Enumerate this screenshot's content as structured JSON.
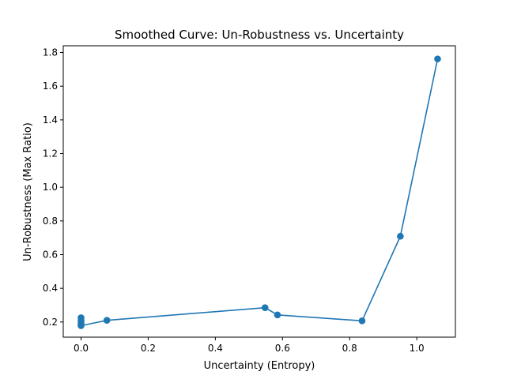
{
  "chart_data": {
    "type": "line",
    "title": "Smoothed Curve: Un-Robustness vs. Uncertainty",
    "xlabel": "Uncertainty (Entropy)",
    "ylabel": "Un-Robustness (Max Ratio)",
    "xlim": [
      -0.053,
      1.115
    ],
    "ylim": [
      0.11,
      1.84
    ],
    "xticks": [
      0.0,
      0.2,
      0.4,
      0.6,
      0.8,
      1.0
    ],
    "xtick_labels": [
      "0.0",
      "0.2",
      "0.4",
      "0.6",
      "0.8",
      "1.0"
    ],
    "yticks": [
      0.2,
      0.4,
      0.6,
      0.8,
      1.0,
      1.2,
      1.4,
      1.6,
      1.8
    ],
    "ytick_labels": [
      "0.2",
      "0.4",
      "0.6",
      "0.8",
      "1.0",
      "1.2",
      "1.4",
      "1.6",
      "1.8"
    ],
    "grid": false,
    "series": [
      {
        "color": "#1f77b4",
        "marker": "circle",
        "points": [
          {
            "x": 0.0,
            "y": 0.225
          },
          {
            "x": 0.0,
            "y": 0.21
          },
          {
            "x": 0.0,
            "y": 0.195
          },
          {
            "x": 0.0,
            "y": 0.185
          },
          {
            "x": 0.0,
            "y": 0.178
          },
          {
            "x": 0.077,
            "y": 0.21
          },
          {
            "x": 0.548,
            "y": 0.285
          },
          {
            "x": 0.585,
            "y": 0.242
          },
          {
            "x": 0.837,
            "y": 0.207
          },
          {
            "x": 0.951,
            "y": 0.709
          },
          {
            "x": 1.062,
            "y": 1.762
          }
        ]
      }
    ]
  }
}
